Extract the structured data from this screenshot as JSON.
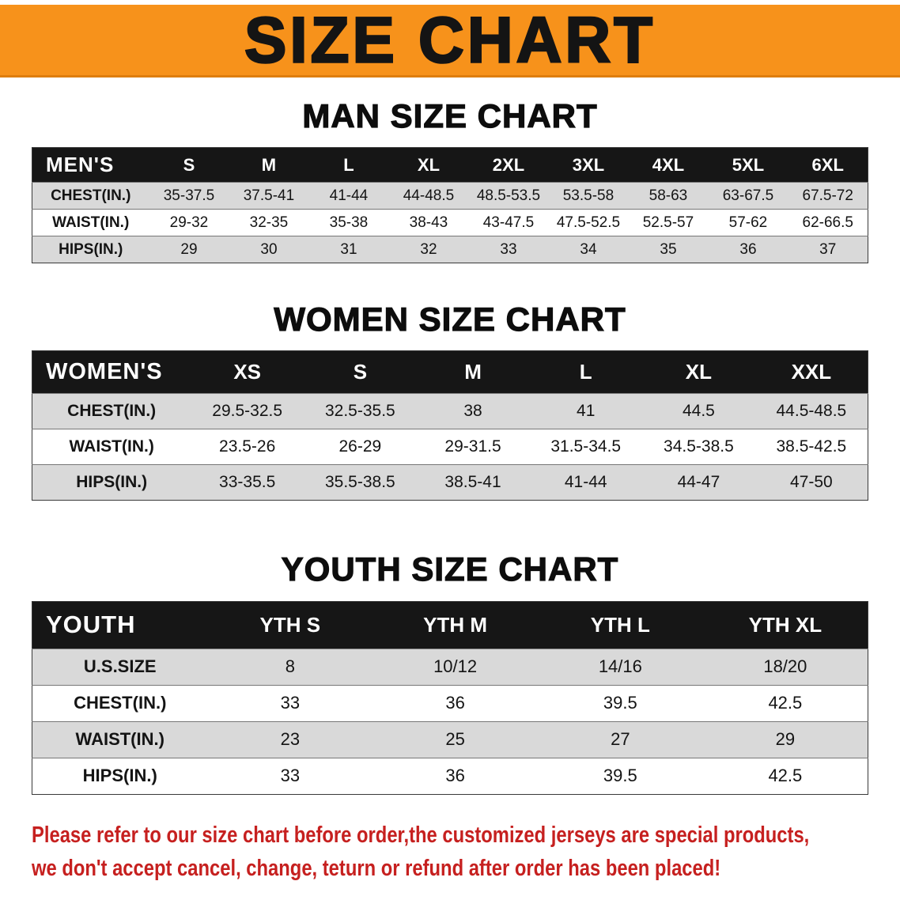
{
  "banner": {
    "title": "SIZE CHART"
  },
  "chart_data": [
    {
      "type": "table",
      "title": "MAN SIZE CHART",
      "columns": [
        "MEN'S",
        "S",
        "M",
        "L",
        "XL",
        "2XL",
        "3XL",
        "4XL",
        "5XL",
        "6XL"
      ],
      "rows": [
        [
          "CHEST(IN.)",
          "35-37.5",
          "37.5-41",
          "41-44",
          "44-48.5",
          "48.5-53.5",
          "53.5-58",
          "58-63",
          "63-67.5",
          "67.5-72"
        ],
        [
          "WAIST(IN.)",
          "29-32",
          "32-35",
          "35-38",
          "38-43",
          "43-47.5",
          "47.5-52.5",
          "52.5-57",
          "57-62",
          "62-66.5"
        ],
        [
          "HIPS(IN.)",
          "29",
          "30",
          "31",
          "32",
          "33",
          "34",
          "35",
          "36",
          "37"
        ]
      ]
    },
    {
      "type": "table",
      "title": "WOMEN SIZE CHART",
      "columns": [
        "WOMEN'S",
        "XS",
        "S",
        "M",
        "L",
        "XL",
        "XXL"
      ],
      "rows": [
        [
          "CHEST(IN.)",
          "29.5-32.5",
          "32.5-35.5",
          "38",
          "41",
          "44.5",
          "44.5-48.5"
        ],
        [
          "WAIST(IN.)",
          "23.5-26",
          "26-29",
          "29-31.5",
          "31.5-34.5",
          "34.5-38.5",
          "38.5-42.5"
        ],
        [
          "HIPS(IN.)",
          "33-35.5",
          "35.5-38.5",
          "38.5-41",
          "41-44",
          "44-47",
          "47-50"
        ]
      ]
    },
    {
      "type": "table",
      "title": "YOUTH SIZE CHART",
      "columns": [
        "YOUTH",
        "YTH S",
        "YTH M",
        "YTH L",
        "YTH XL"
      ],
      "rows": [
        [
          "U.S.SIZE",
          "8",
          "10/12",
          "14/16",
          "18/20"
        ],
        [
          "CHEST(IN.)",
          "33",
          "36",
          "39.5",
          "42.5"
        ],
        [
          "WAIST(IN.)",
          "23",
          "25",
          "27",
          "29"
        ],
        [
          "HIPS(IN.)",
          "33",
          "36",
          "39.5",
          "42.5"
        ]
      ]
    }
  ],
  "footer": {
    "line1": "Please refer to our size chart before order,the customized jerseys are special products,",
    "line2": "we don't accept cancel, change, teturn or refund after order has been placed!"
  },
  "colors": {
    "banner_orange": "#F7921B",
    "table_header_black": "#161616",
    "stripe_gray": "#D9D9D9",
    "notice_red": "#C6201F"
  }
}
